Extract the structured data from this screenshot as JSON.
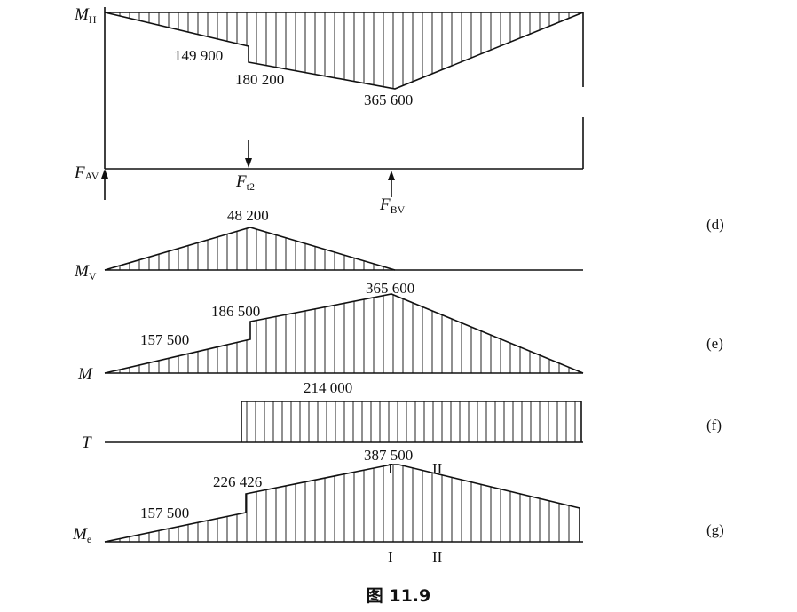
{
  "caption": "图 11.9",
  "diagrams": {
    "MH": {
      "axis_label": "M",
      "axis_sub": "H",
      "values": [
        "149 900",
        "180 200",
        "365 600"
      ]
    },
    "loads": {
      "fav": "F",
      "fav_sub": "AV",
      "ft2": "F",
      "ft2_sub": "t2",
      "fbv": "F",
      "fbv_sub": "BV"
    },
    "MV": {
      "axis_label": "M",
      "axis_sub": "V",
      "values": [
        "48 200"
      ],
      "tag": "(d)"
    },
    "M": {
      "axis_label": "M",
      "values": [
        "157 500",
        "186 500",
        "365 600"
      ],
      "tag": "(e)"
    },
    "T": {
      "axis_label": "T",
      "values": [
        "214 000"
      ],
      "tag": "(f)"
    },
    "Me": {
      "axis_label": "M",
      "axis_sub": "e",
      "values": [
        "157 500",
        "226 426",
        "387 500"
      ],
      "sections": [
        "I",
        "II",
        "I",
        "II"
      ],
      "tag": "(g)"
    }
  }
}
